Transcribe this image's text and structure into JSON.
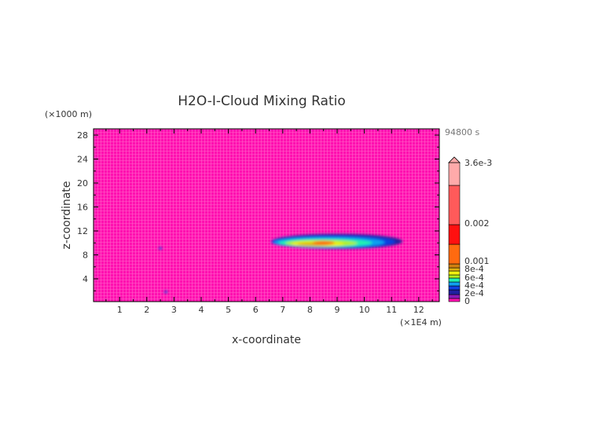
{
  "chart_data": {
    "type": "heatmap",
    "title": "H2O-I-Cloud Mixing Ratio",
    "xlabel": "x-coordinate",
    "ylabel": "z-coordinate",
    "x_unit": "(×1E4 m)",
    "y_unit": "(×1000 m)",
    "time_label": "94800 s",
    "xlim": [
      0,
      12.7
    ],
    "ylim": [
      0,
      29
    ],
    "x_ticks": [
      "1",
      "2",
      "3",
      "4",
      "5",
      "6",
      "7",
      "8",
      "9",
      "10",
      "11",
      "12"
    ],
    "y_ticks": [
      "4",
      "8",
      "12",
      "16",
      "20",
      "24",
      "28"
    ],
    "grid": true,
    "background_value": 0,
    "features": [
      {
        "x_range": [
          6.6,
          11.4
        ],
        "z_range": [
          9.0,
          11.5
        ],
        "peak_x": 8.5,
        "peak_z": 10.0,
        "peak_value": 0.001
      },
      {
        "x": 2.5,
        "z": 9.1,
        "value": 0.0002
      },
      {
        "x": 2.7,
        "z": 1.8,
        "value": 0.0002
      }
    ],
    "colorbar": {
      "labels": [
        "0",
        "2e-4",
        "4e-4",
        "6e-4",
        "8e-4",
        "0.001",
        "0.002",
        "3.6e-3"
      ],
      "levels": [
        0,
        0.0001,
        0.0002,
        0.0003,
        0.0004,
        0.0005,
        0.0006,
        0.0007,
        0.0008,
        0.0009,
        0.001,
        0.0015,
        0.002,
        0.0025,
        0.0036
      ],
      "colors": [
        "#ff10b0",
        "#8a1ab8",
        "#2020a0",
        "#1040e0",
        "#10a0f0",
        "#20f0b0",
        "#b0f020",
        "#f0f010",
        "#e0b010",
        "#d08010",
        "#ff6a10",
        "#ff1010",
        "#ff5a5a",
        "#ffaaaa"
      ],
      "extend": "max"
    }
  }
}
